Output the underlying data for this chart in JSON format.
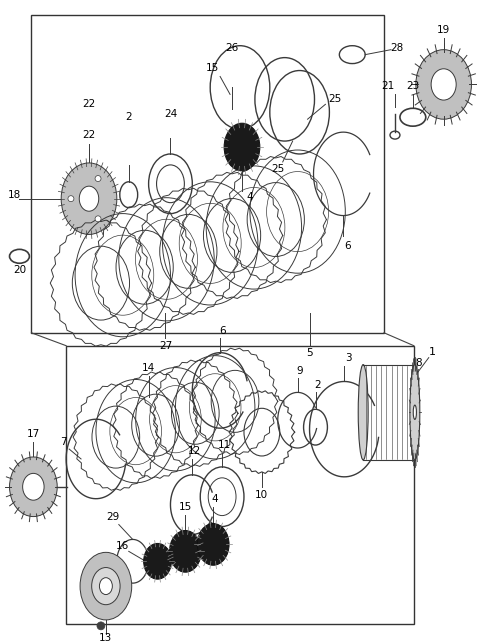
{
  "bg_color": "#ffffff",
  "fig_width": 4.8,
  "fig_height": 6.43,
  "dpi": 100,
  "line_color": "#3a3a3a",
  "gray_fill": "#c8c8c8",
  "dark_fill": "#1a1a1a",
  "mid_fill": "#888888"
}
